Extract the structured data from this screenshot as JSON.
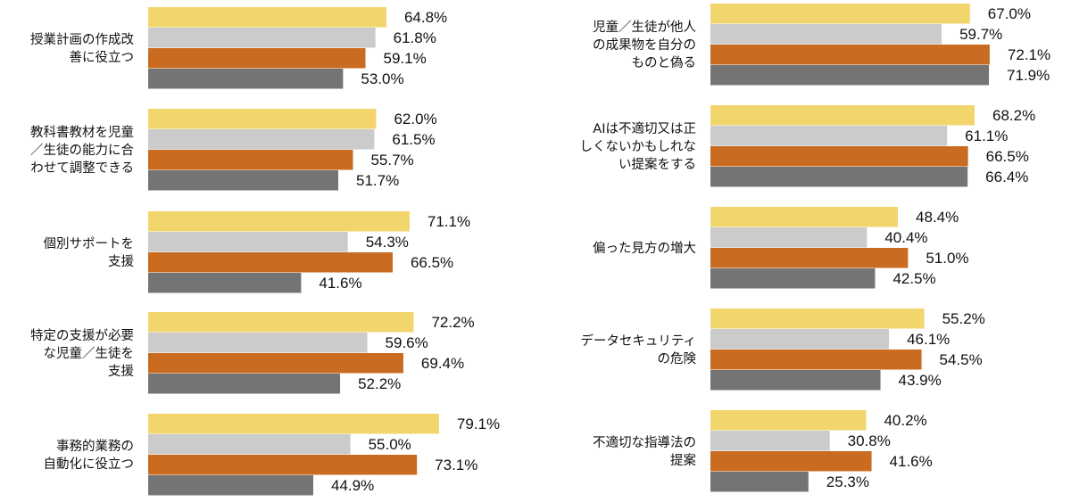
{
  "chart_data": [
    {
      "type": "bar",
      "orientation": "horizontal",
      "categories": [
        [
          "授業計画の作成改",
          "善に役立つ"
        ],
        [
          "教科書教材を児童",
          "／生徒の能力に合",
          "わせて調整できる"
        ],
        [
          "個別サポートを",
          "支援"
        ],
        [
          "特定の支援が必要",
          "な児童／生徒を",
          "支援"
        ],
        [
          "事務的業務の",
          "自動化に役立つ"
        ]
      ],
      "series": [
        {
          "values": [
            64.8,
            62.0,
            71.1,
            72.2,
            79.1
          ]
        },
        {
          "values": [
            61.8,
            61.5,
            54.3,
            59.6,
            55.0
          ]
        },
        {
          "values": [
            59.1,
            55.7,
            66.5,
            69.4,
            73.1
          ]
        },
        {
          "values": [
            53.0,
            51.7,
            41.6,
            52.2,
            44.9
          ]
        }
      ],
      "value_suffix": "%",
      "grid": false
    },
    {
      "type": "bar",
      "orientation": "horizontal",
      "categories": [
        [
          "児童／生徒が他人",
          "の成果物を自分の",
          "ものと偽る"
        ],
        [
          "AIは不適切又は正",
          "しくないかもしれな",
          "い提案をする"
        ],
        [
          "偏った見方の増大"
        ],
        [
          "データセキュリティ",
          "の危険"
        ],
        [
          "不適切な指導法の",
          "提案"
        ]
      ],
      "series": [
        {
          "values": [
            67.0,
            68.2,
            48.4,
            55.2,
            40.2
          ]
        },
        {
          "values": [
            59.7,
            61.1,
            40.4,
            46.1,
            30.8
          ]
        },
        {
          "values": [
            72.1,
            66.5,
            51.0,
            54.5,
            41.6
          ]
        },
        {
          "values": [
            71.9,
            66.4,
            42.5,
            43.9,
            25.3
          ]
        }
      ],
      "value_suffix": "%",
      "grid": false
    }
  ],
  "colors": [
    "#f2d56c",
    "#cbcbcb",
    "#c96b20",
    "#747474"
  ]
}
